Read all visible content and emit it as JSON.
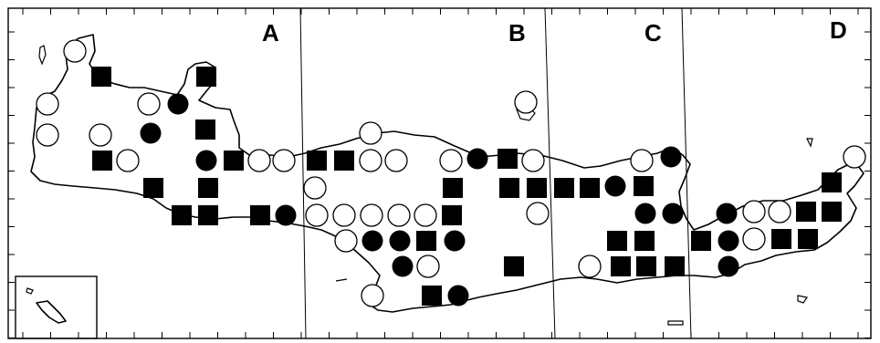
{
  "zones": [
    {
      "id": "A",
      "label": "A"
    },
    {
      "id": "B",
      "label": "B"
    },
    {
      "id": "C",
      "label": "C"
    },
    {
      "id": "D",
      "label": "D"
    }
  ],
  "legend": {
    "square": "filled-square-marker",
    "filled_circle": "filled-circle-marker",
    "open_circle": "open-circle-marker"
  },
  "colors": {
    "ink": "#000000",
    "paper": "#ffffff"
  }
}
